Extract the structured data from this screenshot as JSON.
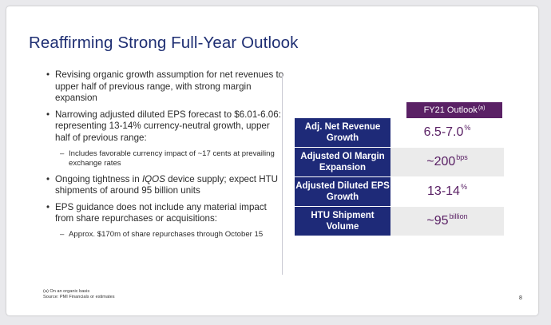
{
  "slide": {
    "title": "Reaffirming Strong Full-Year Outlook",
    "bullets": [
      {
        "text": "Revising organic growth assumption for net revenues to upper half of previous range, with strong margin expansion",
        "subs": []
      },
      {
        "text": "Narrowing adjusted diluted EPS forecast to $6.01-6.06: representing 13-14% currency-neutral growth, upper half of previous range:",
        "subs": [
          "Includes favorable currency impact of ~17 cents at prevailing exchange rates"
        ]
      },
      {
        "text_pre": "Ongoing tightness in ",
        "text_italic": "IQOS",
        "text_post": " device supply; expect HTU shipments of around 95 billion units",
        "subs": []
      },
      {
        "text": "EPS guidance does not include any material impact from share repurchases or acquisitions:",
        "subs": [
          "Approx. $170m of share repurchases through October 15"
        ]
      }
    ],
    "table": {
      "header": "FY21 Outlook",
      "header_note": "(a)",
      "rows": [
        {
          "label": "Adj. Net Revenue Growth",
          "value": "6.5-7.0",
          "unit": "%"
        },
        {
          "label": "Adjusted OI Margin Expansion",
          "value": "~200",
          "unit": "bps"
        },
        {
          "label": "Adjusted Diluted EPS Growth",
          "value": "13-14",
          "unit": "%"
        },
        {
          "label": "HTU Shipment Volume",
          "value": "~95",
          "unit": "billion"
        }
      ]
    },
    "footnotes": [
      "(a) On an organic basis",
      "Source: PMI Financials or estimates"
    ],
    "page_number": "8"
  },
  "colors": {
    "title": "#1f2f73",
    "navy": "#1e2a78",
    "purple": "#5a2165",
    "shade": "#ebebeb"
  }
}
